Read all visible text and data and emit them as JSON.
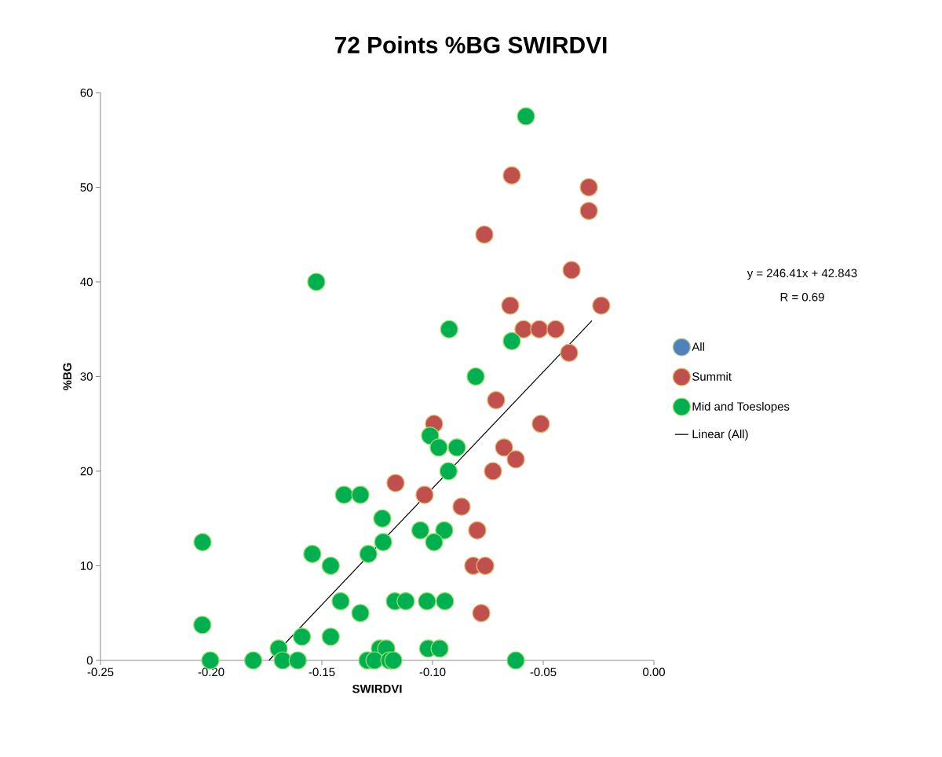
{
  "chart_data": {
    "type": "scatter",
    "title": "72 Points %BG SWIRDVI",
    "xlabel": "SWIRDVI",
    "ylabel": "%BG",
    "annotations": [
      "y = 246.41x + 42.843",
      "R = 0.69"
    ],
    "xlim": [
      -0.25,
      0.0
    ],
    "ylim": [
      0,
      60
    ],
    "xticks": [
      {
        "value": -0.25,
        "label": "-0.25"
      },
      {
        "value": -0.2,
        "label": "-0.20"
      },
      {
        "value": -0.15,
        "label": "-0.15"
      },
      {
        "value": -0.1,
        "label": "-0.10"
      },
      {
        "value": -0.05,
        "label": "-0.05"
      },
      {
        "value": 0.0,
        "label": "0.00"
      }
    ],
    "yticks": [
      0,
      10,
      20,
      30,
      40,
      50,
      60
    ],
    "marker": "circle",
    "legend": "right",
    "grid": false,
    "series": [
      {
        "name": "All",
        "color": "#4f81bd"
      },
      {
        "name": "Summit",
        "color": "#c0504d",
        "x": [
          -0.0642,
          -0.0294,
          -0.0294,
          -0.0766,
          -0.0372,
          -0.0649,
          -0.0238,
          -0.0589,
          -0.0518,
          -0.0444,
          -0.0383,
          -0.0713,
          -0.0993,
          -0.0511,
          -0.0677,
          -0.0624,
          -0.0727,
          -0.1167,
          -0.1036,
          -0.0869,
          -0.0798,
          -0.0816,
          -0.0762,
          -0.078
        ],
        "values": [
          51.25,
          50,
          47.5,
          45,
          41.25,
          37.5,
          37.5,
          35,
          35,
          35,
          32.5,
          27.5,
          25,
          25,
          22.5,
          21.25,
          20,
          18.75,
          17.5,
          16.25,
          13.75,
          10,
          10,
          5
        ]
      },
      {
        "name": "Mid and Toeslopes",
        "color": "#00b050",
        "x": [
          -0.0578,
          -0.1525,
          -0.0925,
          -0.0642,
          -0.0805,
          -0.1011,
          -0.0972,
          -0.089,
          -0.0928,
          -0.14,
          -0.1326,
          -0.1227,
          -0.1223,
          -0.1055,
          -0.0947,
          -0.0993,
          -0.2039,
          -0.1543,
          -0.129,
          -0.146,
          -0.1415,
          -0.117,
          -0.1121,
          -0.1025,
          -0.0944,
          -0.1326,
          -0.204,
          -0.159,
          -0.146,
          -0.1695,
          -0.1238,
          -0.1209,
          -0.102,
          -0.0968,
          -0.2004,
          -0.181,
          -0.1677,
          -0.1609,
          -0.1294,
          -0.1262,
          -0.1195,
          -0.1177,
          -0.0624
        ],
        "values": [
          57.5,
          40,
          35,
          33.75,
          30,
          23.75,
          22.5,
          22.5,
          20,
          17.5,
          17.5,
          15,
          12.5,
          13.75,
          13.75,
          12.5,
          12.5,
          11.25,
          11.25,
          10,
          6.25,
          6.25,
          6.25,
          6.25,
          6.25,
          5,
          3.75,
          2.5,
          2.5,
          1.25,
          1.25,
          1.25,
          1.25,
          1.25,
          0,
          0,
          0,
          0,
          0,
          0,
          0,
          0,
          0
        ]
      },
      {
        "name": "Linear (All)",
        "type": "line",
        "color": "#000000",
        "marker": "none",
        "x": [
          -0.1739,
          -0.028
        ],
        "values": [
          0,
          35.9
        ]
      }
    ]
  }
}
